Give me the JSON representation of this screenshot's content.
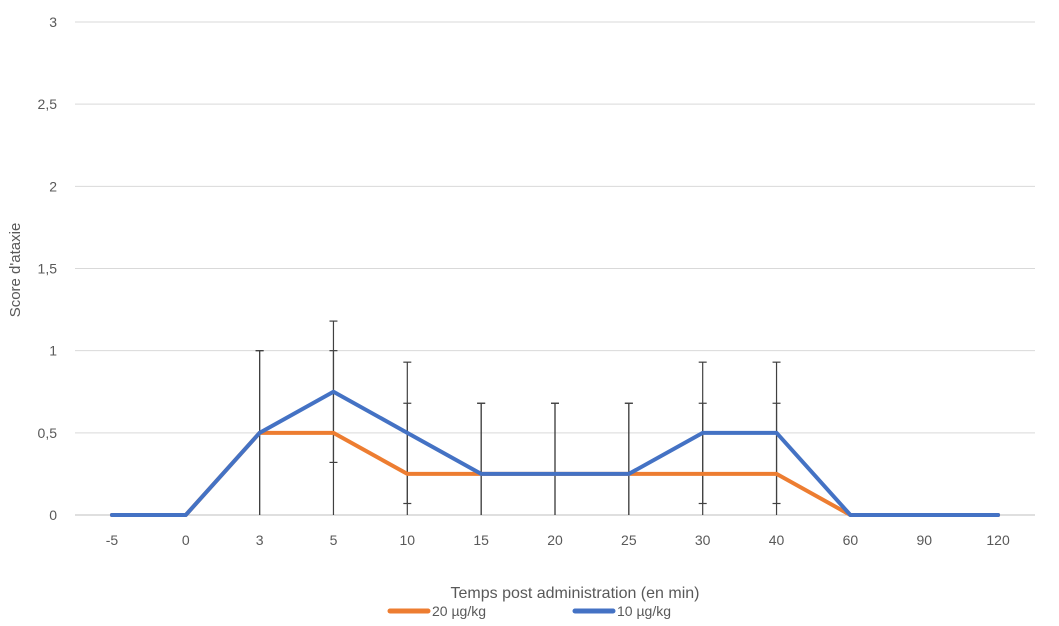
{
  "chart_data": {
    "type": "line",
    "title": "",
    "xlabel": "Temps post administration (en min)",
    "ylabel": "Score d'ataxie",
    "categories": [
      "-5",
      "0",
      "3",
      "5",
      "10",
      "15",
      "20",
      "25",
      "30",
      "40",
      "60",
      "90",
      "120"
    ],
    "y_ticks": [
      "0",
      "0,5",
      "1",
      "1,5",
      "2",
      "2,5",
      "3"
    ],
    "ylim": [
      0,
      3
    ],
    "grid": true,
    "legend_position": "bottom",
    "series": [
      {
        "name": "20 µg/kg",
        "color": "#ED7D31",
        "values": [
          0,
          0,
          0.5,
          0.5,
          0.25,
          0.25,
          0.25,
          0.25,
          0.25,
          0.25,
          0,
          0,
          0
        ],
        "error": [
          0,
          0,
          0.5,
          0.5,
          0.43,
          0.43,
          0.43,
          0.43,
          0.43,
          0.43,
          0,
          0,
          0
        ]
      },
      {
        "name": "10 µg/kg",
        "color": "#4472C4",
        "values": [
          0,
          0,
          0.5,
          0.75,
          0.5,
          0.25,
          0.25,
          0.25,
          0.5,
          0.5,
          0,
          0,
          0
        ],
        "error": [
          0,
          0,
          0.5,
          0.43,
          0.43,
          0.43,
          0.43,
          0.43,
          0.43,
          0.43,
          0,
          0,
          0
        ]
      }
    ]
  }
}
